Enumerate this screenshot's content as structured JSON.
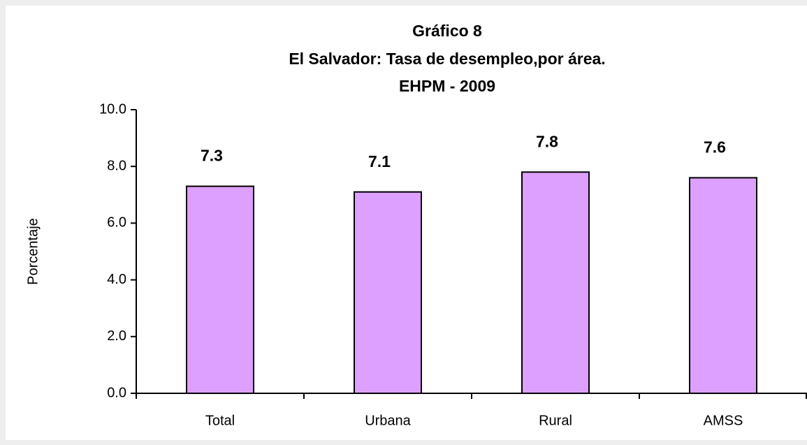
{
  "chart_data": {
    "type": "bar",
    "title": [
      "Gráfico  8",
      "El Salvador: Tasa de desempleo,por área.",
      "EHPM - 2009"
    ],
    "ylabel": "Porcentaje",
    "categories": [
      "Total",
      "Urbana",
      "Rural",
      "AMSS"
    ],
    "values": [
      7.3,
      7.1,
      7.8,
      7.6
    ],
    "color": "#dda0ff",
    "ylim": [
      0,
      10
    ],
    "yticks": [
      {
        "value": 0,
        "label": "0.0"
      },
      {
        "value": 2,
        "label": "2.0"
      },
      {
        "value": 4,
        "label": "4.0"
      },
      {
        "value": 6,
        "label": "6.0"
      },
      {
        "value": 8,
        "label": "8.0"
      },
      {
        "value": 10,
        "label": "10.0"
      }
    ]
  }
}
